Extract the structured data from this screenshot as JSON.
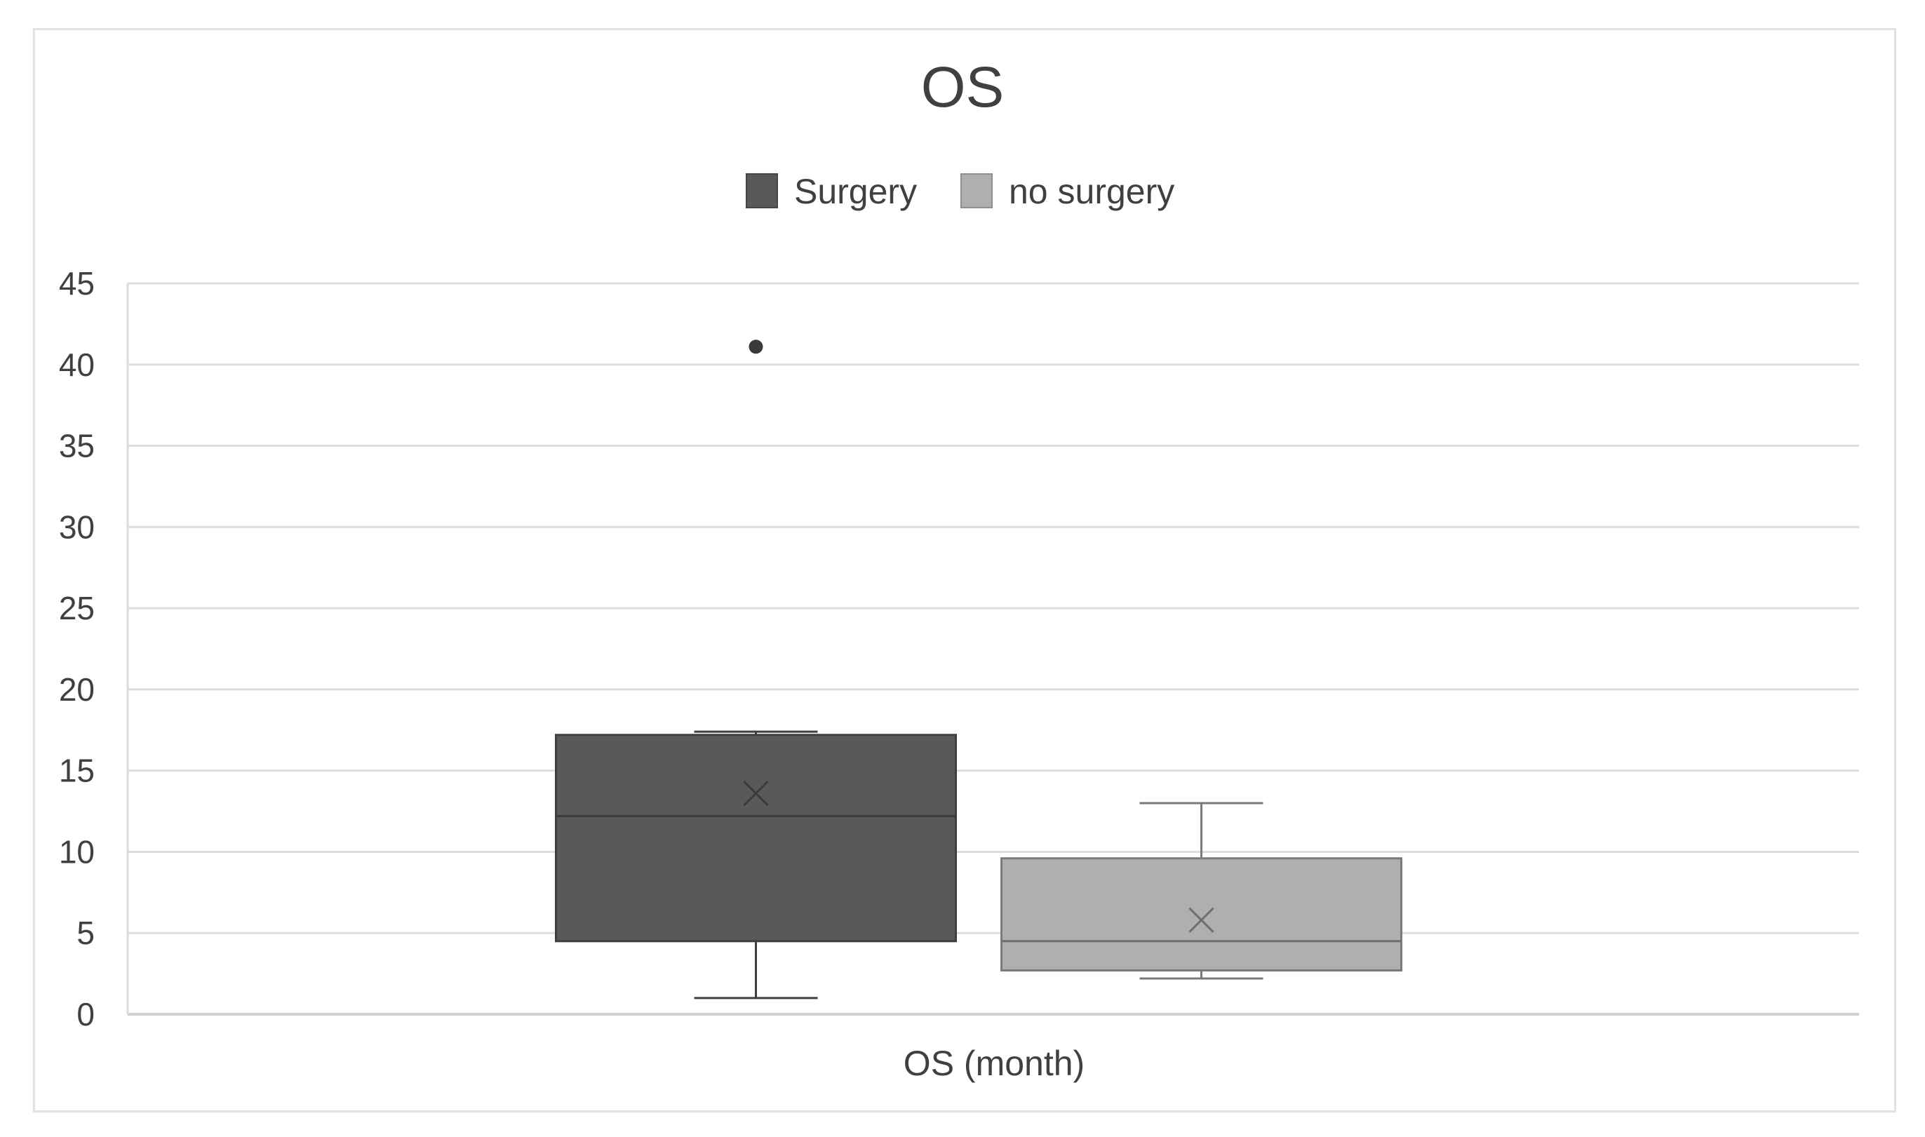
{
  "chart_data": {
    "type": "box",
    "title": "OS",
    "xlabel": "OS (month)",
    "ylabel": "",
    "ylim": [
      0,
      45
    ],
    "yticks": [
      "0",
      "5",
      "10",
      "15",
      "20",
      "25",
      "30",
      "35",
      "40",
      "45"
    ],
    "grid": true,
    "legend_position": "top-center",
    "series": [
      {
        "name": "Surgery",
        "color": "#595959",
        "min": 1,
        "q1": 4.5,
        "median": 12.2,
        "q3": 17.2,
        "max": 17.4,
        "mean": 13.6,
        "outliers": [
          41.1
        ]
      },
      {
        "name": "no surgery",
        "color": "#afafaf",
        "min": 2.2,
        "q1": 2.7,
        "median": 4.5,
        "q3": 9.6,
        "max": 13,
        "mean": 5.8,
        "outliers": []
      }
    ]
  }
}
